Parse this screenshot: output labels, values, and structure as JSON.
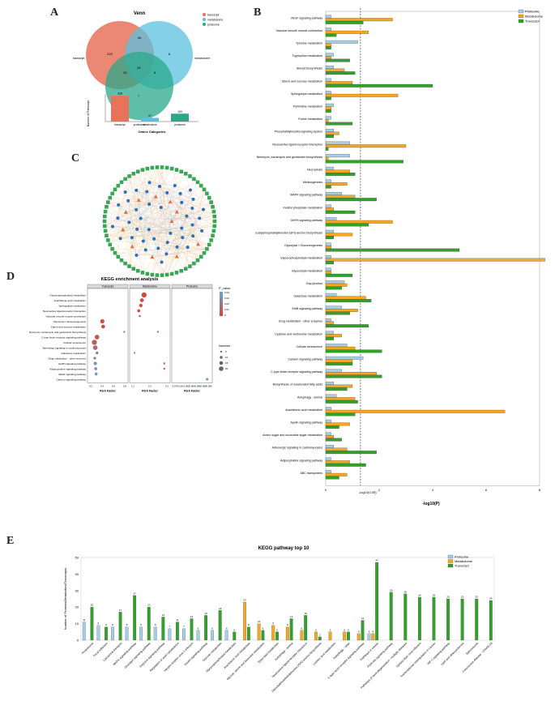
{
  "panels": {
    "a": "A",
    "b": "B",
    "c": "C",
    "d": "D",
    "e": "E"
  },
  "venn": {
    "title": "Venn",
    "sets": [
      "transcript",
      "metabolome",
      "proteome"
    ],
    "colors": [
      "#e8735a",
      "#5bc0de",
      "#2aa889"
    ],
    "regions": {
      "t_only": "225",
      "m_only": "8",
      "p_only": "7",
      "tm": "66",
      "tp": "26",
      "mp": "8",
      "tmp": "28"
    },
    "legend": [
      "transcript",
      "metabolome",
      "proteome"
    ],
    "bar": {
      "ylabel": "Number of Pathways",
      "xlabel": "Omics Categories",
      "categories": [
        "transcript",
        "metabolome",
        "proteome"
      ],
      "values": [
        328,
        47,
        100
      ],
      "value_labels": [
        "328",
        "47",
        "100"
      ]
    }
  },
  "network": {
    "label": "C"
  },
  "chart_data": [
    {
      "type": "bar",
      "orientation": "horizontal",
      "panel": "B",
      "xlabel": "-log10(P)",
      "xlim": [
        0,
        8
      ],
      "xticks": [
        "0",
        "2",
        "4",
        "6",
        "8"
      ],
      "threshold": {
        "value": 1.3,
        "label": "-log10(0.05)"
      },
      "legend": [
        "Proteome",
        "Metabolome",
        "Transcript"
      ],
      "colors": [
        "#a6cee3",
        "#f5a623",
        "#33a02c"
      ],
      "categories": [
        "VEGF signaling pathway",
        "Vascular smooth muscle contraction",
        "Tyrosine metabolism",
        "Tryptophan metabolism",
        "Steroid biosynthesis",
        "Starch and sucrose metabolism",
        "Sphingolipid metabolism",
        "Pyrimidine metabolism",
        "Purine metabolism",
        "Phosphatidylinositol signaling system",
        "Neuroactive ligand-receptor interaction",
        "Neomycin, kanamycin and gentamicin biosynthesis",
        "Necroptosis",
        "Melanogenesis",
        "MAPK signaling pathway",
        "Inositol phosphate metabolism",
        "GnRH signaling pathway",
        "Glycosylphosphatidylinositol (GPI)-anchor biosynthesis",
        "Glycolysis / Gluconeogenesis",
        "Glycerophospholipid metabolism",
        "Glycerolipid metabolism",
        "Gap junction",
        "Galactose metabolism",
        "ErbB signaling pathway",
        "Drug metabolism - other enzymes",
        "Cysteine and methionine metabolism",
        "Cellular senescence",
        "Calcium signaling pathway",
        "C-type lectin receptor signaling pathway",
        "Biosynthesis of unsaturated fatty acids",
        "Autophagy - animal",
        "Arachidonic acid metabolism",
        "Apelin signaling pathway",
        "Amino sugar and nucleotide sugar metabolism",
        "Adrenergic signaling in cardiomyocytes",
        "Adipocytokine signaling pathway",
        "ABC transporters"
      ],
      "series": [
        {
          "name": "Proteome",
          "values": [
            0.2,
            0.2,
            1.2,
            0.3,
            0.3,
            0.2,
            0.2,
            0.3,
            0.2,
            0.3,
            0.9,
            0.9,
            0.3,
            0.2,
            0.6,
            0.2,
            0.4,
            0.3,
            0.2,
            0.2,
            0.2,
            0.7,
            0.4,
            0.6,
            0.2,
            0.3,
            0.8,
            1.4,
            0.6,
            0.3,
            0.4,
            0.2,
            0.2,
            0.2,
            0.3,
            0.2,
            0.2
          ]
        },
        {
          "name": "Metabolome",
          "values": [
            2.5,
            1.6,
            0.2,
            0.2,
            0.7,
            1.0,
            2.7,
            0.2,
            0.1,
            0.5,
            3.0,
            0.1,
            0.9,
            0.8,
            1.1,
            0.3,
            2.5,
            1.0,
            0.2,
            8.2,
            0.2,
            0.8,
            1.5,
            1.2,
            0.3,
            0.6,
            1.1,
            1.0,
            1.9,
            1.0,
            1.1,
            6.7,
            0.9,
            0.3,
            0.8,
            0.9,
            0.8
          ]
        },
        {
          "name": "Transcript",
          "values": [
            1.4,
            0.4,
            0.2,
            0.9,
            1.1,
            4.0,
            0.2,
            0.2,
            1.0,
            0.3,
            0.1,
            2.9,
            1.1,
            0.2,
            1.9,
            1.1,
            1.6,
            0.3,
            5.0,
            0.3,
            1.0,
            0.6,
            1.7,
            0.9,
            1.6,
            0.3,
            2.1,
            1.0,
            2.1,
            0.8,
            1.2,
            1.1,
            0.5,
            0.6,
            1.9,
            1.5,
            0.5
          ]
        }
      ]
    },
    {
      "type": "scatter",
      "panel": "D",
      "title": "KEGG enrichment analysis",
      "xlabel": "Rich Factor",
      "facets": [
        {
          "name": "Transcript",
          "xlim": [
            0,
            0.85
          ],
          "xticks": [
            "0.2",
            "0.4",
            "0.6",
            "0.8"
          ]
        },
        {
          "name": "Metabolome",
          "xlim": [
            0,
            0.35
          ],
          "xticks": [
            "0.1",
            "0.2",
            "0.3"
          ]
        },
        {
          "name": "Proteome",
          "xlim": [
            0.075,
            0.091
          ],
          "xticks": [
            "0.078",
            "0.08",
            "0.082",
            "0.084",
            "0.086",
            "0.088",
            "0.090"
          ]
        }
      ],
      "categories": [
        "Glycerophospholipid metabolism",
        "Arachidonic acid metabolism",
        "Sphingolipid metabolism",
        "Neuroactive ligand-receptor interaction",
        "Vascular smooth muscle contraction",
        "Glycolysis / Gluconeogenesis",
        "Starch and sucrose metabolism",
        "Neomycin, kanamycin and gentamicin biosynthesis",
        "C-type lectin receptor signaling pathway",
        "Cellular senescence",
        "Adrenergic signaling in cardiomyocytes",
        "Galactose metabolism",
        "Drug metabolism - other enzymes",
        "GnRH signaling pathway",
        "Adipocytokine signaling pathway",
        "VEGF signaling pathway",
        "Calcium signaling pathway"
      ],
      "points": [
        {
          "facet": 0,
          "cat": 5,
          "x": 0.3,
          "size": 4,
          "p": 0.003
        },
        {
          "facet": 0,
          "cat": 6,
          "x": 0.32,
          "size": 3.5,
          "p": 0.004
        },
        {
          "facet": 0,
          "cat": 7,
          "x": 0.8,
          "size": 1,
          "p": 0.02
        },
        {
          "facet": 0,
          "cat": 8,
          "x": 0.18,
          "size": 4.5,
          "p": 0.01
        },
        {
          "facet": 0,
          "cat": 9,
          "x": 0.12,
          "size": 5,
          "p": 0.01
        },
        {
          "facet": 0,
          "cat": 10,
          "x": 0.14,
          "size": 4.5,
          "p": 0.02
        },
        {
          "facet": 0,
          "cat": 11,
          "x": 0.18,
          "size": 2,
          "p": 0.02
        },
        {
          "facet": 0,
          "cat": 12,
          "x": 0.13,
          "size": 2,
          "p": 0.03
        },
        {
          "facet": 0,
          "cat": 13,
          "x": 0.14,
          "size": 3,
          "p": 0.04
        },
        {
          "facet": 0,
          "cat": 14,
          "x": 0.15,
          "size": 2.5,
          "p": 0.04
        },
        {
          "facet": 0,
          "cat": 15,
          "x": 0.16,
          "size": 2.5,
          "p": 0.045
        },
        {
          "facet": 1,
          "cat": 0,
          "x": 0.12,
          "size": 5,
          "p": 0.001
        },
        {
          "facet": 1,
          "cat": 1,
          "x": 0.1,
          "size": 3.5,
          "p": 0.002
        },
        {
          "facet": 1,
          "cat": 2,
          "x": 0.09,
          "size": 3,
          "p": 0.003
        },
        {
          "facet": 1,
          "cat": 3,
          "x": 0.07,
          "size": 2.5,
          "p": 0.004
        },
        {
          "facet": 1,
          "cat": 4,
          "x": 0.08,
          "size": 1.5,
          "p": 0.03
        },
        {
          "facet": 1,
          "cat": 7,
          "x": 0.25,
          "size": 1,
          "p": 0.01
        },
        {
          "facet": 1,
          "cat": 11,
          "x": 0.03,
          "size": 1,
          "p": 0.03
        },
        {
          "facet": 1,
          "cat": 13,
          "x": 0.31,
          "size": 1.2,
          "p": 0.01
        },
        {
          "facet": 1,
          "cat": 14,
          "x": 0.31,
          "size": 1.2,
          "p": 0.01
        },
        {
          "facet": 2,
          "cat": 16,
          "x": 0.0895,
          "size": 2,
          "p": 0.048
        }
      ],
      "legend": {
        "color_title": "P_value",
        "color_ticks": [
          "0.04",
          "0.03",
          "0.02",
          "0.01",
          "0"
        ],
        "size_title": "Number",
        "size_ticks": [
          "5",
          "10",
          "15",
          "20"
        ]
      }
    },
    {
      "type": "bar",
      "panel": "E",
      "title": "KEGG pathway top 10",
      "ylabel": "Number of Proteins/Metabolites/Transcripts",
      "ylim": [
        0,
        50
      ],
      "yticks": [
        "0",
        "10",
        "20",
        "30",
        "40",
        "50"
      ],
      "legend": [
        "Proteome",
        "Metabolome",
        "Transcript"
      ],
      "colors": [
        "#a6cee3",
        "#f5a623",
        "#33a02c"
      ],
      "categories": [
        "Proteasome",
        "Focal adhesion",
        "Lysosomal transport",
        "MAPK signaling pathway",
        "Glucagon signaling pathway",
        "Oxytocin signaling pathway",
        "Regulation of actin cytoskeleton",
        "Herpes simplex virus 1 infection",
        "Insulin signaling pathway",
        "Glucose metabolism",
        "Glycerophospholipid metabolism",
        "Arachidonic acid metabolism",
        "Glycine, serine and threonine metabolism",
        "Ether lipid metabolism",
        "Autophagy - animal",
        "Neuroactive ligand-receptor interaction",
        "Glycosylphosphatidylinositol (GPI)-anchor biosynthesis",
        "Linoleic acid metabolism",
        "Autophagy - other",
        "C-type lectin receptor signaling pathway",
        "Pathways in cancer",
        "PI3K-Akt signaling pathway",
        "Pathways of neurodegeneration - multiple diseases",
        "Epstein-Barr virus infection",
        "Transcriptional misregulation in cancer",
        "HIF-1 signaling pathway",
        "Lipid and atherosclerosis",
        "Spliceosome",
        "Coronavirus disease - COVID-19"
      ],
      "series": [
        {
          "name": "Proteome",
          "values": [
            11,
            9,
            8,
            8,
            8,
            8,
            7,
            7,
            6,
            6,
            6,
            0,
            0,
            0,
            0,
            0,
            0,
            0,
            0,
            0,
            4,
            0,
            0,
            0,
            0,
            0,
            0,
            0,
            0
          ]
        },
        {
          "name": "Metabolome",
          "values": [
            0,
            0,
            0,
            0,
            0,
            0,
            0,
            0,
            0,
            0,
            0,
            23,
            10,
            9,
            8,
            6,
            5,
            5,
            5,
            4,
            4,
            0,
            0,
            0,
            0,
            0,
            0,
            0,
            0
          ]
        },
        {
          "name": "Transcript",
          "values": [
            20,
            8,
            17,
            27,
            20,
            14,
            11,
            13,
            15,
            18,
            5,
            8,
            6,
            5,
            13,
            15,
            2,
            0,
            5,
            12,
            47,
            29,
            28,
            26,
            26,
            25,
            25,
            25,
            24
          ]
        }
      ],
      "labels": [
        [
          "11",
          "9",
          "8",
          "8",
          "8",
          "8",
          "7",
          "7",
          "6",
          "6",
          "6",
          "",
          "",
          "",
          "",
          "",
          "",
          "",
          "",
          "",
          "4",
          "",
          "",
          "",
          "",
          "",
          "",
          "",
          ""
        ],
        [
          "",
          "",
          "",
          "",
          "",
          "",
          "",
          "",
          "",
          "",
          "",
          "23",
          "10",
          "9",
          "8",
          "6",
          "5",
          "5",
          "5",
          "4",
          "4",
          "",
          "",
          "",
          "",
          "",
          "",
          "",
          ""
        ],
        [
          "20",
          "8",
          "17",
          "27",
          "20",
          "14",
          "11",
          "13",
          "15",
          "18",
          "5",
          "8",
          "6",
          "5",
          "13",
          "15",
          "2",
          "",
          "5",
          "12",
          "47",
          "29",
          "28",
          "26",
          "26",
          "25",
          "25",
          "25",
          "24"
        ]
      ]
    }
  ]
}
